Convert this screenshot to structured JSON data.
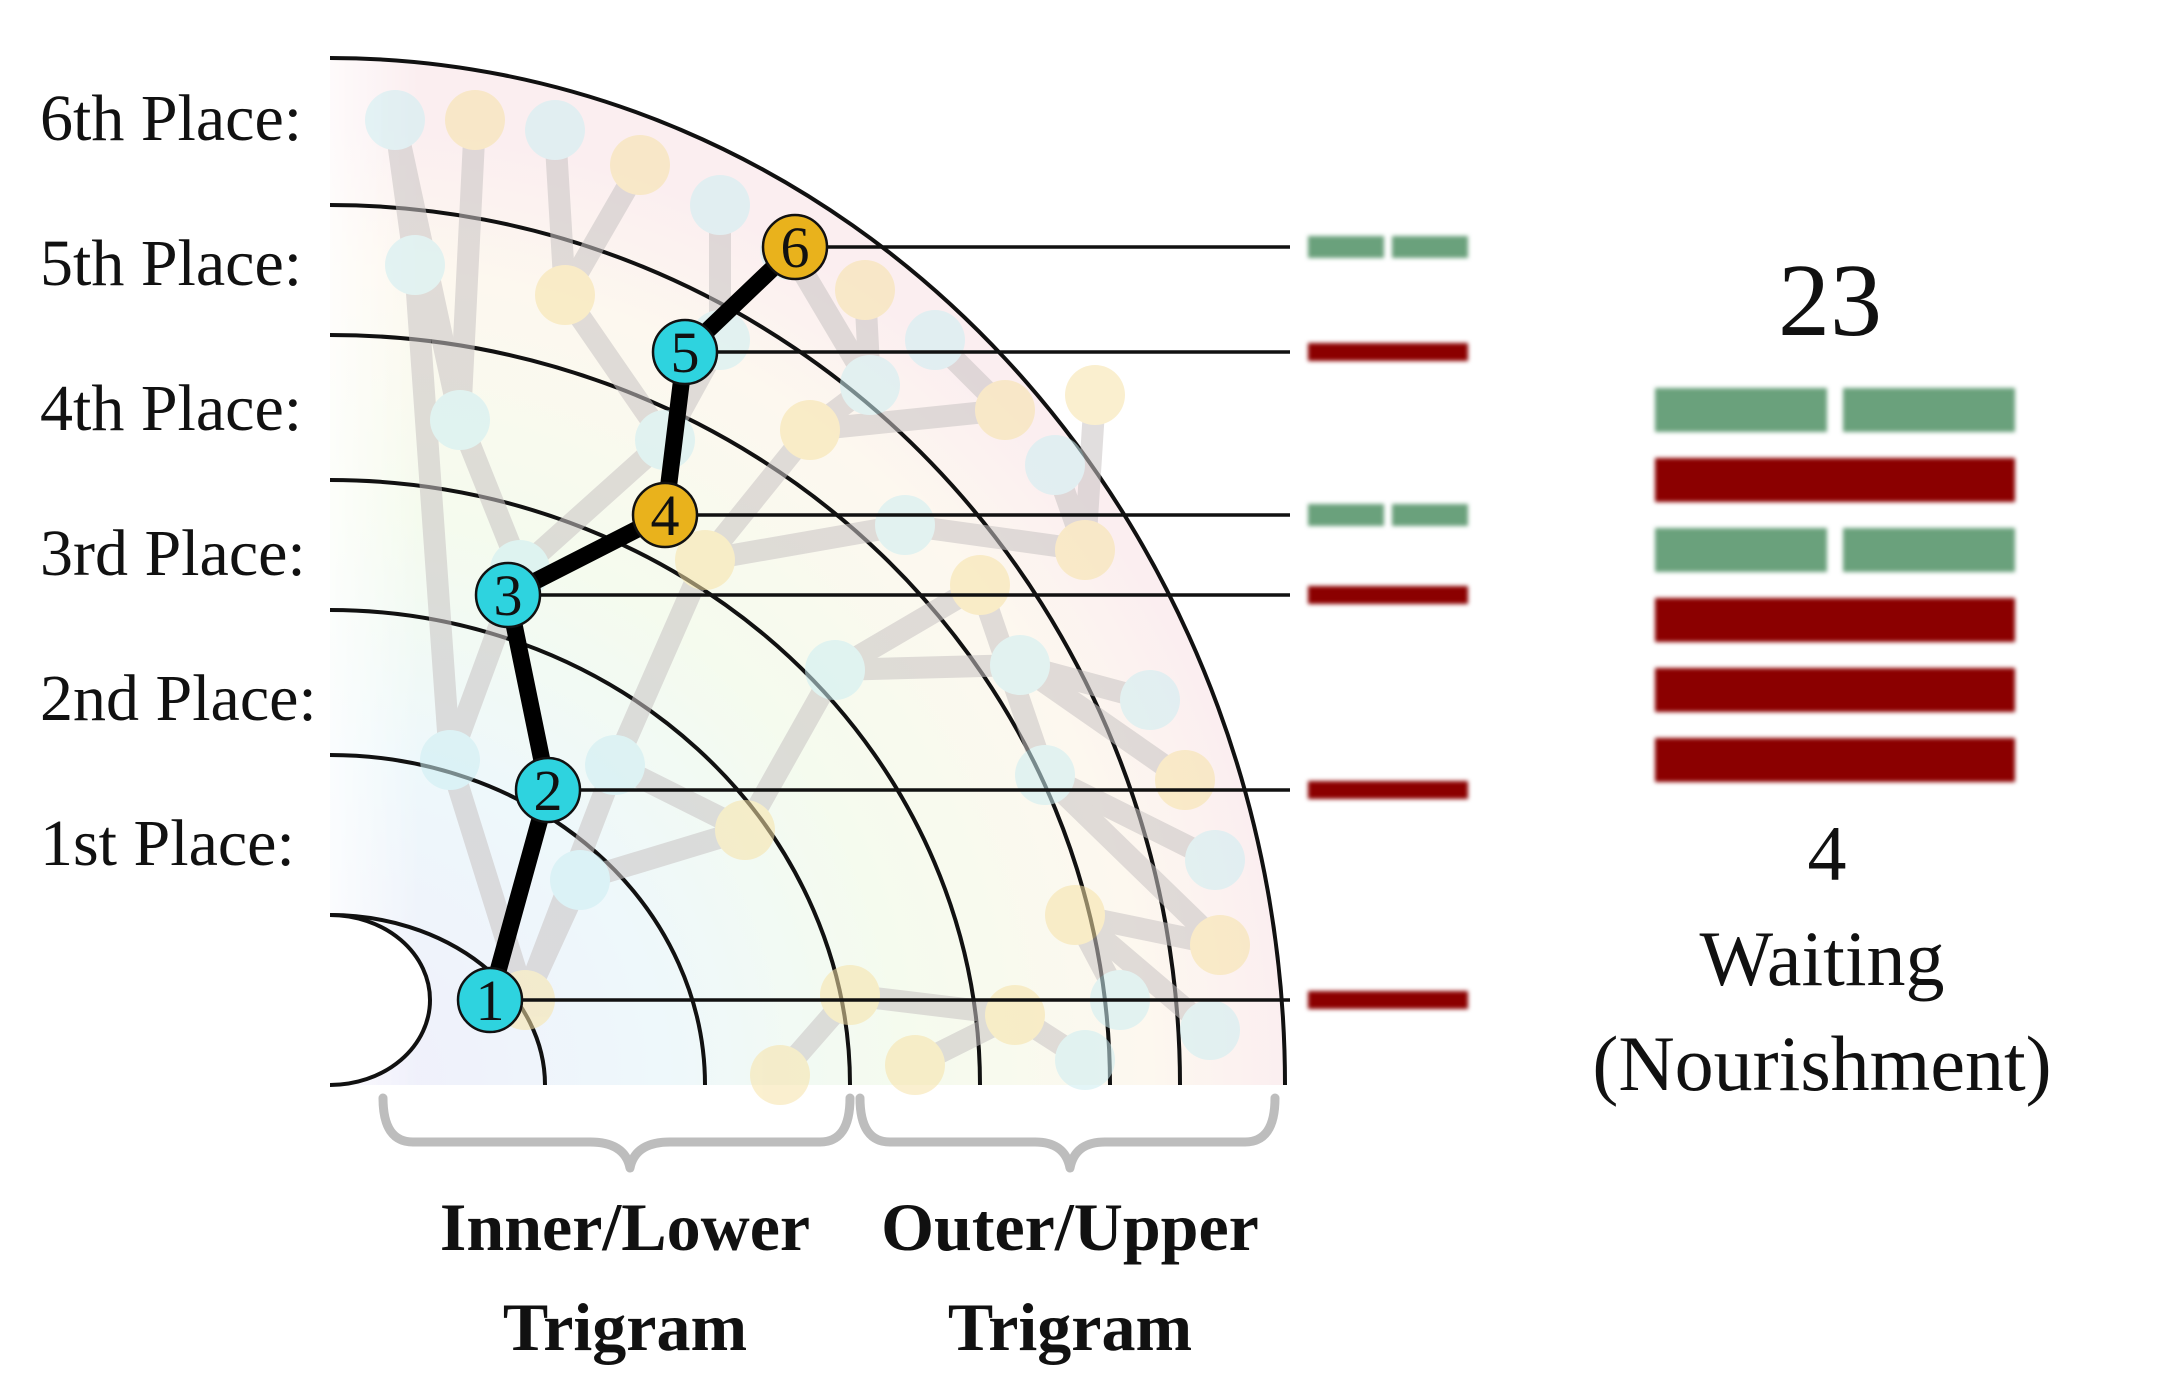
{
  "place_labels": [
    "1st Place:",
    "2nd Place:",
    "3rd Place:",
    "4th Place:",
    "5th Place:",
    "6th Place:"
  ],
  "trigram_labels": {
    "inner": [
      "Inner/Lower",
      "Trigram"
    ],
    "outer": [
      "Outer/Upper",
      "Trigram"
    ]
  },
  "path_nodes": [
    {
      "label": "1",
      "color": "#2ed3df"
    },
    {
      "label": "2",
      "color": "#2ed3df"
    },
    {
      "label": "3",
      "color": "#2ed3df"
    },
    {
      "label": "4",
      "color": "#e9b21c"
    },
    {
      "label": "5",
      "color": "#2ed3df"
    },
    {
      "label": "6",
      "color": "#e9b21c"
    }
  ],
  "lines_bottom_to_top": [
    "yang",
    "yang",
    "yang",
    "yin",
    "yang",
    "yin"
  ],
  "colors": {
    "yang": "#8b0000",
    "yin": "#6aa17c",
    "faint_cyan": "#cdeef2",
    "faint_yellow": "#f7e3a8"
  },
  "hexagram": {
    "number": "23",
    "sequence": "4",
    "name": "Waiting",
    "subtitle": "(Nourishment)"
  }
}
